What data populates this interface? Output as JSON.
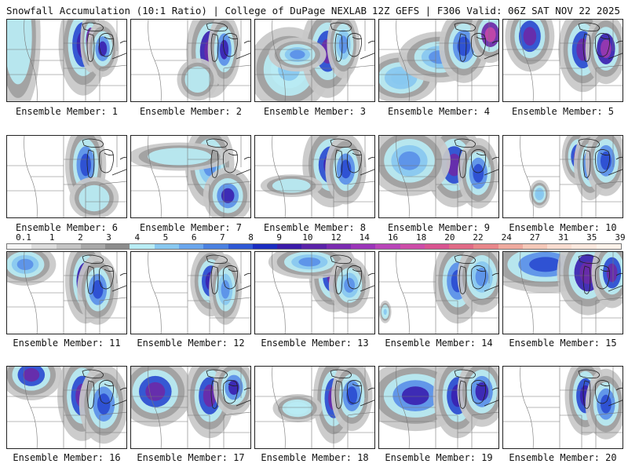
{
  "header": {
    "title_left": "Snowfall Accumulation (10:1 Ratio) | College of DuPage NEXLAB",
    "title_right": "12Z GEFS | F306 Valid: 06Z SAT NOV 22 2025"
  },
  "colorbar": {
    "ticks": [
      "0.1",
      "1",
      "2",
      "3",
      "4",
      "5",
      "6",
      "7",
      "8",
      "9",
      "10",
      "12",
      "14",
      "16",
      "18",
      "20",
      "22",
      "24",
      "27",
      "31",
      "35",
      "39"
    ],
    "colors": [
      "#f4f4f4",
      "#dcdcdc",
      "#c4c4c4",
      "#a8a8a8",
      "#8c8c8c",
      "#b8ecf4",
      "#88c8f0",
      "#6aa6ec",
      "#4a80e0",
      "#2e58d4",
      "#1a2cc0",
      "#3a1aa8",
      "#5a22a8",
      "#7a2ab0",
      "#9a34b8",
      "#b844b8",
      "#cc4ca8",
      "#d85490",
      "#e06a86",
      "#e8868a",
      "#eeaa9e",
      "#f4c8b8",
      "#f8dcd0",
      "#fbe8de",
      "#fdf2ea"
    ]
  },
  "panels": [
    {
      "label": "Ensemble Member: 1",
      "snow": [
        [
          0.09,
          0.2,
          0.11,
          0.55,
          0.3
        ],
        [
          0.63,
          0.3,
          0.12,
          0.36,
          0.75
        ],
        [
          0.69,
          0.26,
          0.05,
          0.22,
          0.95
        ],
        [
          0.79,
          0.35,
          0.08,
          0.2,
          0.7
        ]
      ]
    },
    {
      "label": "Ensemble Member: 2",
      "snow": [
        [
          0.66,
          0.38,
          0.12,
          0.33,
          0.85
        ],
        [
          0.77,
          0.36,
          0.08,
          0.26,
          0.7
        ],
        [
          0.55,
          0.72,
          0.1,
          0.15,
          0.3
        ]
      ]
    },
    {
      "label": "Ensemble Member: 3",
      "snow": [
        [
          0.28,
          0.6,
          0.2,
          0.3,
          0.4
        ],
        [
          0.6,
          0.38,
          0.13,
          0.33,
          0.8
        ],
        [
          0.73,
          0.3,
          0.08,
          0.24,
          0.55
        ],
        [
          0.35,
          0.42,
          0.14,
          0.12,
          0.55
        ]
      ]
    },
    {
      "label": "Ensemble Member: 4",
      "snow": [
        [
          0.18,
          0.7,
          0.18,
          0.18,
          0.45
        ],
        [
          0.5,
          0.45,
          0.2,
          0.18,
          0.5
        ],
        [
          0.7,
          0.32,
          0.12,
          0.26,
          0.65
        ],
        [
          0.92,
          0.18,
          0.1,
          0.2,
          0.95
        ]
      ]
    },
    {
      "label": "Ensemble Member: 5",
      "snow": [
        [
          0.22,
          0.2,
          0.12,
          0.25,
          0.8
        ],
        [
          0.66,
          0.36,
          0.12,
          0.3,
          0.8
        ],
        [
          0.85,
          0.35,
          0.1,
          0.25,
          0.9
        ]
      ]
    },
    {
      "label": "Ensemble Member: 6",
      "snow": [
        [
          0.65,
          0.35,
          0.1,
          0.3,
          0.65
        ],
        [
          0.72,
          0.75,
          0.12,
          0.15,
          0.2
        ]
      ]
    },
    {
      "label": "Ensemble Member: 7",
      "snow": [
        [
          0.65,
          0.35,
          0.12,
          0.3,
          0.55
        ],
        [
          0.8,
          0.72,
          0.12,
          0.2,
          0.7
        ],
        [
          0.4,
          0.25,
          0.25,
          0.1,
          0.2
        ]
      ]
    },
    {
      "label": "Ensemble Member: 8",
      "snow": [
        [
          0.63,
          0.35,
          0.14,
          0.3,
          0.75
        ],
        [
          0.75,
          0.4,
          0.1,
          0.25,
          0.6
        ],
        [
          0.3,
          0.6,
          0.15,
          0.08,
          0.15
        ]
      ]
    },
    {
      "label": "Ensemble Member: 9",
      "snow": [
        [
          0.62,
          0.35,
          0.14,
          0.3,
          0.8
        ],
        [
          0.25,
          0.3,
          0.2,
          0.25,
          0.55
        ],
        [
          0.82,
          0.45,
          0.1,
          0.25,
          0.65
        ]
      ]
    },
    {
      "label": "Ensemble Member: 10",
      "snow": [
        [
          0.62,
          0.25,
          0.08,
          0.2,
          0.8
        ],
        [
          0.72,
          0.35,
          0.08,
          0.25,
          0.7
        ],
        [
          0.85,
          0.3,
          0.1,
          0.25,
          0.6
        ],
        [
          0.3,
          0.7,
          0.05,
          0.1,
          0.45
        ]
      ]
    },
    {
      "label": "Ensemble Member: 11",
      "snow": [
        [
          0.15,
          0.15,
          0.15,
          0.15,
          0.5
        ],
        [
          0.65,
          0.35,
          0.1,
          0.3,
          0.85
        ],
        [
          0.75,
          0.45,
          0.1,
          0.25,
          0.6
        ]
      ]
    },
    {
      "label": "Ensemble Member: 12",
      "snow": [
        [
          0.66,
          0.35,
          0.1,
          0.25,
          0.75
        ],
        [
          0.78,
          0.45,
          0.08,
          0.25,
          0.55
        ]
      ]
    },
    {
      "label": "Ensemble Member: 13",
      "snow": [
        [
          0.65,
          0.3,
          0.12,
          0.25,
          0.8
        ],
        [
          0.45,
          0.12,
          0.2,
          0.12,
          0.55
        ],
        [
          0.78,
          0.4,
          0.1,
          0.2,
          0.5
        ]
      ]
    },
    {
      "label": "Ensemble Member: 14",
      "snow": [
        [
          0.65,
          0.35,
          0.12,
          0.3,
          0.6
        ],
        [
          0.85,
          0.3,
          0.12,
          0.25,
          0.55
        ],
        [
          0.05,
          0.72,
          0.03,
          0.08,
          0.4
        ]
      ]
    },
    {
      "label": "Ensemble Member: 15",
      "snow": [
        [
          0.35,
          0.15,
          0.3,
          0.2,
          0.65
        ],
        [
          0.7,
          0.25,
          0.15,
          0.3,
          0.85
        ],
        [
          0.9,
          0.25,
          0.1,
          0.25,
          0.8
        ]
      ]
    },
    {
      "label": "Ensemble Member: 16",
      "snow": [
        [
          0.2,
          0.1,
          0.15,
          0.18,
          0.8
        ],
        [
          0.62,
          0.35,
          0.12,
          0.32,
          0.8
        ],
        [
          0.8,
          0.45,
          0.12,
          0.28,
          0.65
        ]
      ]
    },
    {
      "label": "Ensemble Member: 17",
      "snow": [
        [
          0.2,
          0.3,
          0.18,
          0.25,
          0.8
        ],
        [
          0.65,
          0.35,
          0.12,
          0.3,
          0.8
        ],
        [
          0.85,
          0.25,
          0.1,
          0.2,
          0.7
        ]
      ]
    },
    {
      "label": "Ensemble Member: 18",
      "snow": [
        [
          0.65,
          0.38,
          0.1,
          0.32,
          0.8
        ],
        [
          0.8,
          0.35,
          0.1,
          0.25,
          0.65
        ],
        [
          0.35,
          0.5,
          0.12,
          0.1,
          0.35
        ]
      ]
    },
    {
      "label": "Ensemble Member: 19",
      "snow": [
        [
          0.3,
          0.35,
          0.25,
          0.25,
          0.7
        ],
        [
          0.65,
          0.35,
          0.12,
          0.3,
          0.75
        ],
        [
          0.85,
          0.3,
          0.12,
          0.25,
          0.7
        ]
      ]
    },
    {
      "label": "Ensemble Member: 20",
      "snow": [
        [
          0.68,
          0.35,
          0.1,
          0.28,
          0.75
        ],
        [
          0.85,
          0.45,
          0.1,
          0.25,
          0.65
        ]
      ]
    }
  ]
}
